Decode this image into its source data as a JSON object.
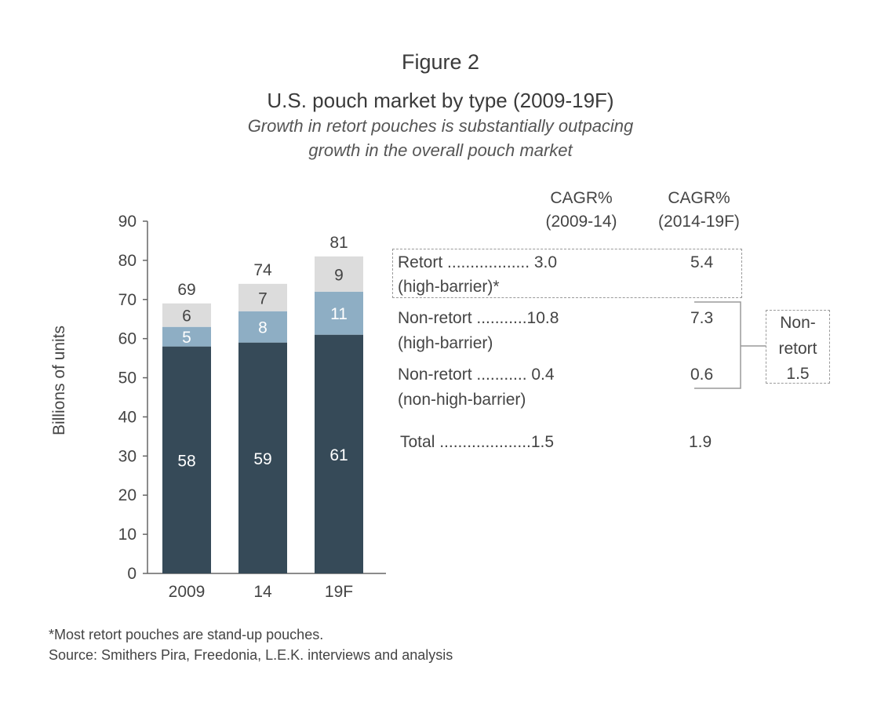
{
  "header": {
    "figure_label": "Figure 2",
    "title": "U.S. pouch market by type (2009-19F)",
    "subtitle_line1": "Growth in retort pouches is substantially outpacing",
    "subtitle_line2": "growth in the overall pouch market"
  },
  "chart_data": {
    "type": "bar",
    "stacked": true,
    "categories": [
      "2009",
      "14",
      "19F"
    ],
    "ylabel": "Billions of units",
    "ylim": [
      0,
      90
    ],
    "yticks": [
      0,
      10,
      20,
      30,
      40,
      50,
      60,
      70,
      80,
      90
    ],
    "series": [
      {
        "values": [
          58,
          59,
          61
        ],
        "color": "#364a58",
        "label_color": "#ffffff"
      },
      {
        "values": [
          5,
          8,
          11
        ],
        "color": "#8eaec4",
        "label_color": "#ffffff"
      },
      {
        "values": [
          6,
          7,
          9
        ],
        "color": "#dcdcdc",
        "label_color": "#444444"
      }
    ],
    "totals": [
      69,
      74,
      81
    ]
  },
  "cagr_table": {
    "col1_header_line1": "CAGR%",
    "col1_header_line2": "(2009-14)",
    "col2_header_line1": "CAGR%",
    "col2_header_line2": "(2014-19F)",
    "rows": [
      {
        "label_line1": "Retort .................. 3.0",
        "label_line2": "(high-barrier)*",
        "col2": "5.4"
      },
      {
        "label_line1": "Non-retort ...........10.8",
        "label_line2": "(high-barrier)",
        "col2": "7.3"
      },
      {
        "label_line1": "Non-retort ........... 0.4",
        "label_line2": "(non-high-barrier)",
        "col2": "0.6"
      },
      {
        "label_line1": "Total ....................1.5",
        "label_line2": "",
        "col2": "1.9"
      }
    ],
    "non_retort_box": {
      "line1": "Non-",
      "line2": "retort",
      "line3": "1.5"
    }
  },
  "footnotes": {
    "note": "*Most retort pouches are stand-up pouches.",
    "source": "Source: Smithers Pira, Freedonia, L.E.K. interviews and analysis"
  }
}
